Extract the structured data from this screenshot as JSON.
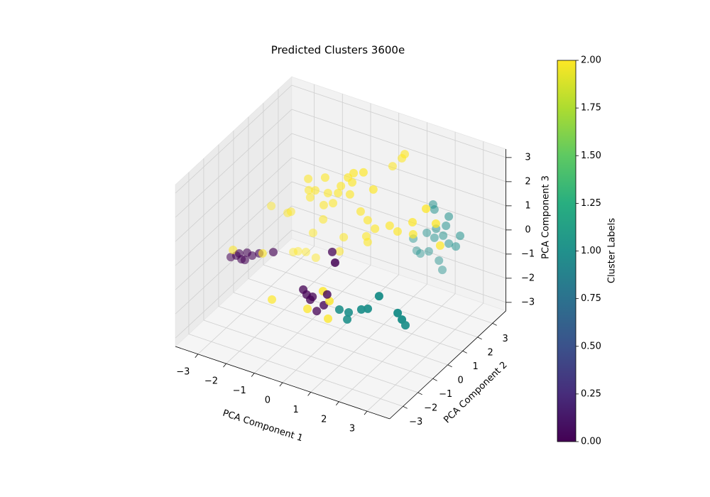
{
  "chart_data": {
    "type": "scatter3d",
    "title": "Predicted Clusters 3600e",
    "xlabel": "PCA Component 1",
    "ylabel": "PCA Component 2",
    "zlabel": "PCA Component 3",
    "xlim": [
      -3.8,
      3.8
    ],
    "ylim": [
      -3.9,
      3.9
    ],
    "zlim": [
      -3.35,
      3.35
    ],
    "xticks": [
      {
        "value": -3,
        "label": "−3"
      },
      {
        "value": -2,
        "label": "−2"
      },
      {
        "value": -1,
        "label": "−1"
      },
      0,
      1,
      2,
      3
    ],
    "yticks": [
      {
        "value": -3,
        "label": "−3"
      },
      {
        "value": -2,
        "label": "−2"
      },
      {
        "value": -1,
        "label": "−1"
      },
      0,
      1,
      2,
      3
    ],
    "zticks": [
      {
        "value": -3,
        "label": "−3"
      },
      {
        "value": -2,
        "label": "−2"
      },
      {
        "value": -1,
        "label": "−1"
      },
      0,
      1,
      2,
      3
    ],
    "grid": true,
    "colorbar": {
      "label": "Cluster Labels",
      "colormap": "viridis",
      "clim": [
        0,
        2
      ],
      "ticks": [
        {
          "value": 0,
          "label": "0.00"
        },
        {
          "value": 0.25,
          "label": "0.25"
        },
        {
          "value": 0.5,
          "label": "0.50"
        },
        {
          "value": 0.75,
          "label": "0.75"
        },
        {
          "value": 1,
          "label": "1.00"
        },
        {
          "value": 1.25,
          "label": "1.25"
        },
        {
          "value": 1.5,
          "label": "1.50"
        },
        {
          "value": 1.75,
          "label": "1.75"
        },
        {
          "value": 2,
          "label": "2.00"
        }
      ]
    },
    "series": [
      {
        "color": "#440154",
        "x": [
          -3.37,
          -3.17,
          -2.99,
          -2.79,
          -2.61,
          -2.87,
          -2.36,
          -1.86,
          0.23,
          -3.07,
          -0.27,
          -0.15,
          0.06,
          0.21,
          0.46,
          0.58,
          -0.02,
          0.86
        ],
        "y": [
          -1,
          -1,
          -1,
          -1,
          -1,
          -1,
          -1,
          -1,
          -1,
          -1,
          -2,
          -2,
          -2,
          -2,
          -2,
          -2,
          -2,
          -2
        ],
        "z": [
          -1.14,
          -1.0,
          -1.08,
          -0.73,
          -0.78,
          -1.06,
          -0.59,
          -0.34,
          0.49,
          -0.87,
          -0.69,
          -0.85,
          -0.86,
          -1.39,
          -1.05,
          -0.56,
          -1.01,
          0.87
        ]
      },
      {
        "color": "#21918c",
        "x": [
          1.54,
          1.87,
          1.82,
          2.55,
          2.95,
          3.61,
          3.76,
          3.62,
          2.32,
          1.74,
          1.69,
          2.25,
          2.15,
          1.47,
          1.74,
          2.05,
          2.65,
          2.5,
          2.25,
          1.24,
          1.54,
          1.9,
          2.02,
          0.99,
          1.11,
          1.8
        ],
        "y": [
          -3,
          -3,
          -3,
          -3,
          -3,
          -3,
          -3,
          -2.5,
          -3,
          3,
          3,
          3,
          3,
          3,
          3,
          3,
          3,
          3,
          3,
          3,
          3,
          3,
          3,
          3,
          3,
          3
        ],
        "z": [
          -0.23,
          -0.22,
          -0.53,
          0.2,
          0.88,
          0.44,
          0.23,
          -0.35,
          0.08,
          0.55,
          0.74,
          0.46,
          0.04,
          -0.52,
          -0.62,
          -0.41,
          -0.18,
          -0.68,
          -0.66,
          -1.47,
          -1.26,
          -1.5,
          -1.84,
          -0.95,
          -1.4,
          -0.22
        ]
      },
      {
        "color": "#fde725",
        "x": [
          0.95,
          0.85,
          0.52,
          0.28,
          -0.07,
          -0.27,
          -0.12,
          -0.52,
          -1.08,
          -1.68,
          -1.66,
          -1.43,
          -0.98,
          -0.62,
          -0.2,
          0.63,
          0.18,
          0.43,
          0.69,
          1.21,
          1.49,
          2.02,
          2.5,
          2.85,
          3.0,
          2.04,
          0.38,
          0.43,
          -0.42,
          -1.51,
          -1.41,
          -2.21,
          -2.04,
          -1.76,
          -0.57,
          -2.29,
          -2.41,
          -2.99,
          -1.13,
          -1.15,
          -1.61,
          -0.8,
          -2.24,
          -3.29,
          -1.38,
          0.61,
          -0.12,
          0.43,
          0.66
        ],
        "y": [
          2.5,
          2.5,
          2.5,
          1,
          1,
          1,
          1,
          1,
          1,
          1,
          1,
          1,
          1,
          1,
          1,
          1,
          1,
          1,
          1,
          1,
          1,
          1,
          1,
          1,
          1,
          1,
          1,
          1,
          1,
          1,
          1,
          1,
          1,
          1,
          1,
          1,
          1,
          1,
          1,
          1,
          1,
          1,
          -1,
          -1,
          -2,
          -2,
          -2,
          -2,
          -2
        ],
        "z": [
          2.82,
          2.61,
          2.15,
          2.66,
          2.49,
          2.23,
          2.09,
          1.78,
          1.91,
          1.62,
          1.16,
          1.24,
          1.31,
          1.45,
          1.56,
          2.09,
          1.0,
          0.74,
          0.49,
          0.82,
          0.69,
          1.28,
          2.03,
          1.55,
          0.7,
          0.79,
          0.05,
          -0.17,
          -0.3,
          -0.55,
          -1.54,
          -1.62,
          -1.52,
          -1.44,
          -0.95,
          0.02,
          -0.08,
          -0.02,
          0.75,
          0.15,
          0.88,
          0.96,
          -0.54,
          -0.81,
          -1.54,
          -1.55,
          -1.43,
          -0.48,
          -0.8
        ]
      }
    ]
  }
}
